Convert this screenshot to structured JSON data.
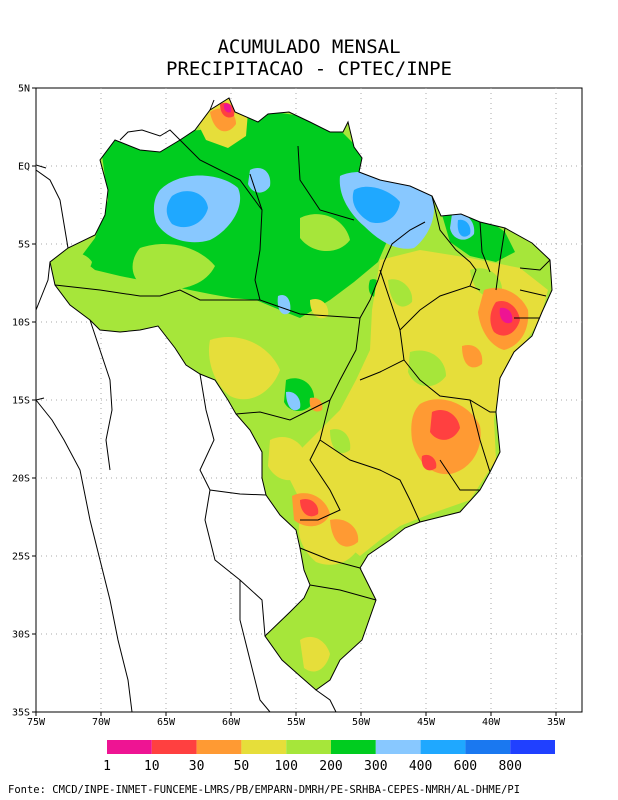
{
  "title_line1": "ACUMULADO MENSAL",
  "title_line2": "PRECIPITACAO - CPTEC/INPE",
  "lat_ticks": [
    {
      "value": 5,
      "label": "5N"
    },
    {
      "value": 0,
      "label": "EQ"
    },
    {
      "value": -5,
      "label": "5S"
    },
    {
      "value": -10,
      "label": "10S"
    },
    {
      "value": -15,
      "label": "15S"
    },
    {
      "value": -20,
      "label": "20S"
    },
    {
      "value": -25,
      "label": "25S"
    },
    {
      "value": -30,
      "label": "30S"
    },
    {
      "value": -35,
      "label": "35S"
    }
  ],
  "lon_ticks": [
    {
      "value": -75,
      "label": "75W"
    },
    {
      "value": -70,
      "label": "70W"
    },
    {
      "value": -65,
      "label": "65W"
    },
    {
      "value": -60,
      "label": "60W"
    },
    {
      "value": -55,
      "label": "55W"
    },
    {
      "value": -50,
      "label": "50W"
    },
    {
      "value": -45,
      "label": "45W"
    },
    {
      "value": -40,
      "label": "40W"
    },
    {
      "value": -35,
      "label": "35W"
    }
  ],
  "extent": {
    "lon_min": -75,
    "lon_max": -33,
    "lat_min": -35,
    "lat_max": 5
  },
  "legend": {
    "colors": [
      "#ee1493",
      "#ff4040",
      "#ff9a33",
      "#e6de3a",
      "#a6e63a",
      "#00cc1f",
      "#88c8ff",
      "#1fa8ff",
      "#1a78f0",
      "#2040ff"
    ],
    "labels": [
      "1",
      "10",
      "30",
      "50",
      "100",
      "200",
      "300",
      "400",
      "600",
      "800"
    ]
  },
  "footer": "Fonte: CMCD/INPE-INMET-FUNCEME-LMRS/PB/EMPARN-DMRH/PE-SRHBA-CEPES-NMRH/AL-DHME/PI"
}
